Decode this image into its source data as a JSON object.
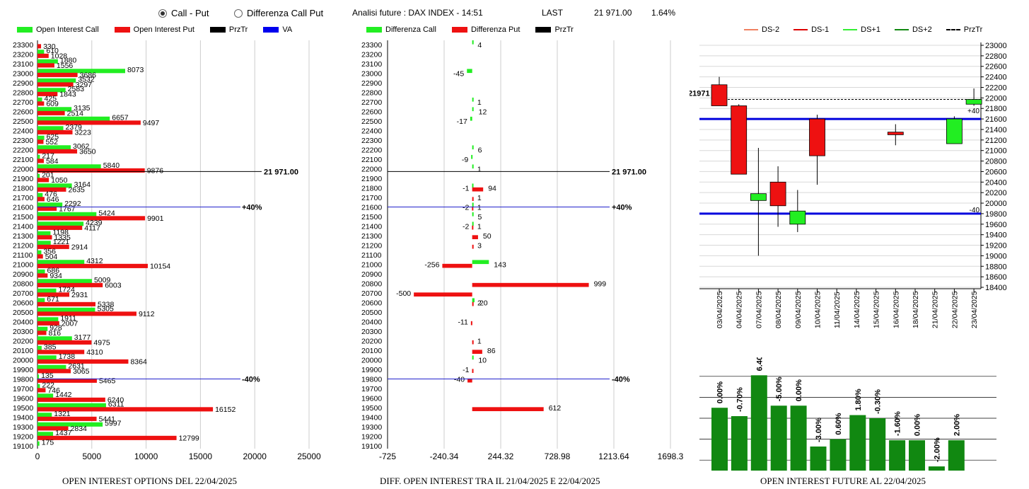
{
  "controls": {
    "radio1": "Call - Put",
    "radio2": "Differenza Call Put",
    "selected": 1
  },
  "header": {
    "title": "Analisi future : DAX INDEX - 14:51",
    "last_label": "LAST",
    "last_value": "21 971.00",
    "change": "1.64%"
  },
  "legends": {
    "oi": [
      {
        "label": "Open Interest Call",
        "color": "#22ee22"
      },
      {
        "label": "Open Interest Put",
        "color": "#ee1111"
      },
      {
        "label": "PrzTr",
        "color": "#000000"
      },
      {
        "label": "VA",
        "color": "#0000ee"
      }
    ],
    "diff": [
      {
        "label": "Differenza Call",
        "color": "#22ee22"
      },
      {
        "label": "Differenza Put",
        "color": "#ee1111"
      },
      {
        "label": "PrzTr",
        "color": "#000000"
      }
    ],
    "candle": [
      {
        "label": "DS-2",
        "color": "#f08060",
        "dash": false
      },
      {
        "label": "DS-1",
        "color": "#dd0000",
        "dash": false
      },
      {
        "label": "DS+1",
        "color": "#33ee33",
        "dash": false
      },
      {
        "label": "DS+2",
        "color": "#118811",
        "dash": false
      },
      {
        "label": "PrzTr",
        "color": "#000000",
        "dash": true
      }
    ]
  },
  "titles": {
    "oi": "OPEN INTEREST OPTIONS DEL 22/04/2025",
    "diff": "DIFF. OPEN INTEREST TRA IL 21/04/2025 E 22/04/2025",
    "future": "OPEN INTEREST FUTURE AL 22/04/2025"
  },
  "chart_data": [
    {
      "type": "bar",
      "name": "open-interest",
      "orientation": "horizontal",
      "strikes": [
        23300,
        23200,
        23100,
        23000,
        22900,
        22800,
        22700,
        22600,
        22500,
        22400,
        22300,
        22200,
        22100,
        22000,
        21900,
        21800,
        21700,
        21600,
        21500,
        21400,
        21300,
        21200,
        21100,
        21000,
        20900,
        20800,
        20700,
        20600,
        20500,
        20400,
        20300,
        20200,
        20100,
        20000,
        19900,
        19800,
        19700,
        19600,
        19500,
        19400,
        19300,
        19200,
        19100
      ],
      "series": [
        {
          "name": "Open Interest Call",
          "values": [
            null,
            610,
            1880,
            8073,
            3532,
            2583,
            425,
            3135,
            6657,
            2379,
            625,
            3062,
            217,
            5840,
            201,
            3164,
            476,
            2292,
            5424,
            4239,
            1198,
            1221,
            356,
            4312,
            686,
            5009,
            1724,
            671,
            5305,
            1911,
            928,
            3177,
            385,
            1738,
            2631,
            135,
            222,
            1442,
            6311,
            1321,
            5997,
            1437,
            175
          ]
        },
        {
          "name": "Open Interest Put",
          "values": [
            330,
            1028,
            1556,
            3686,
            3297,
            1843,
            609,
            2514,
            9497,
            3223,
            552,
            3650,
            584,
            9876,
            1050,
            2635,
            646,
            1767,
            9901,
            4117,
            1335,
            2914,
            504,
            10154,
            934,
            6003,
            2931,
            5338,
            9112,
            2007,
            816,
            4975,
            4310,
            8364,
            3065,
            5465,
            746,
            6240,
            16152,
            5441,
            2834,
            12799,
            null
          ]
        }
      ],
      "xlim": [
        0,
        25000
      ],
      "xticks": [
        0,
        5000,
        10000,
        15000,
        20000,
        25000
      ],
      "annotations": [
        {
          "strike": 21971,
          "label": "21 971.00",
          "kind": "PrzTr"
        },
        {
          "strike": 21600,
          "label": "+40%",
          "kind": "VA"
        },
        {
          "strike": 19800,
          "label": "-40%",
          "kind": "VA"
        }
      ]
    },
    {
      "type": "bar",
      "name": "oi-difference",
      "orientation": "horizontal",
      "strikes": [
        23300,
        23200,
        23100,
        23000,
        22900,
        22800,
        22700,
        22600,
        22500,
        22400,
        22300,
        22200,
        22100,
        22000,
        21900,
        21800,
        21700,
        21600,
        21500,
        21400,
        21300,
        21200,
        21100,
        21000,
        20900,
        20800,
        20700,
        20600,
        20500,
        20400,
        20300,
        20200,
        20100,
        20000,
        19900,
        19800,
        19700,
        19600,
        19500,
        19400,
        19300,
        19200,
        19100
      ],
      "labels": [
        {
          "strike": 23300,
          "value": 4
        },
        {
          "strike": 23000,
          "value": -45
        },
        {
          "strike": 22700,
          "value": 1
        },
        {
          "strike": 22600,
          "value": 12
        },
        {
          "strike": 22500,
          "value": -17
        },
        {
          "strike": 22200,
          "value": 6
        },
        {
          "strike": 22100,
          "value": -9
        },
        {
          "strike": 22000,
          "value": 1
        },
        {
          "strike": 21800,
          "value": -1
        },
        {
          "strike": 21800,
          "value": 94
        },
        {
          "strike": 21700,
          "value": 1
        },
        {
          "strike": 21600,
          "value": 1
        },
        {
          "strike": 21600,
          "value": -2
        },
        {
          "strike": 21500,
          "value": 5
        },
        {
          "strike": 21400,
          "value": 1
        },
        {
          "strike": 21400,
          "value": -2
        },
        {
          "strike": 21300,
          "value": 50
        },
        {
          "strike": 21200,
          "value": 3
        },
        {
          "strike": 21000,
          "value": 143
        },
        {
          "strike": 21000,
          "value": -256
        },
        {
          "strike": 20800,
          "value": 999
        },
        {
          "strike": 20700,
          "value": -500
        },
        {
          "strike": 20600,
          "value": 20
        },
        {
          "strike": 20600,
          "value": 2
        },
        {
          "strike": 20400,
          "value": -11
        },
        {
          "strike": 20200,
          "value": 1
        },
        {
          "strike": 20100,
          "value": 86
        },
        {
          "strike": 20000,
          "value": 10
        },
        {
          "strike": 19900,
          "value": -1
        },
        {
          "strike": 19800,
          "value": -40
        },
        {
          "strike": 19500,
          "value": 612
        }
      ],
      "bars": [
        {
          "strike": 23300,
          "call": 4,
          "put": 0
        },
        {
          "strike": 23000,
          "call": -45,
          "put": 0
        },
        {
          "strike": 22700,
          "call": 1,
          "put": 0
        },
        {
          "strike": 22600,
          "call": 12,
          "put": 0
        },
        {
          "strike": 22500,
          "call": -17,
          "put": 0
        },
        {
          "strike": 22200,
          "call": 6,
          "put": 0
        },
        {
          "strike": 22100,
          "call": -9,
          "put": 0
        },
        {
          "strike": 22000,
          "call": 1,
          "put": 0
        },
        {
          "strike": 21800,
          "call": -1,
          "put": 94
        },
        {
          "strike": 21700,
          "call": 0,
          "put": 1
        },
        {
          "strike": 21600,
          "call": 1,
          "put": -2
        },
        {
          "strike": 21500,
          "call": 5,
          "put": 0
        },
        {
          "strike": 21400,
          "call": 1,
          "put": -2
        },
        {
          "strike": 21300,
          "call": 0,
          "put": 50
        },
        {
          "strike": 21200,
          "call": 0,
          "put": 3
        },
        {
          "strike": 21000,
          "call": 143,
          "put": -256
        },
        {
          "strike": 20800,
          "call": 0,
          "put": 999
        },
        {
          "strike": 20700,
          "call": 0,
          "put": -500
        },
        {
          "strike": 20600,
          "call": 20,
          "put": 2
        },
        {
          "strike": 20400,
          "call": 0,
          "put": -11
        },
        {
          "strike": 20200,
          "call": 0,
          "put": 1
        },
        {
          "strike": 20100,
          "call": 0,
          "put": 86
        },
        {
          "strike": 20000,
          "call": 10,
          "put": 0
        },
        {
          "strike": 19900,
          "call": 0,
          "put": -1
        },
        {
          "strike": 19800,
          "call": 0,
          "put": -40
        },
        {
          "strike": 19500,
          "call": 0,
          "put": 612
        }
      ],
      "xlim": [
        -725,
        1698.3
      ],
      "xticks": [
        "-725",
        "-240.34",
        "244.32",
        "728.98",
        "1213.64",
        "1698.3"
      ],
      "annotations": [
        {
          "strike": 21971,
          "label": "21 971.00"
        },
        {
          "strike": 21600,
          "label": "+40%"
        },
        {
          "strike": 19800,
          "label": "-40%"
        }
      ]
    },
    {
      "type": "candlestick",
      "name": "future-price",
      "dates": [
        "03/04/2025",
        "04/04/2025",
        "07/04/2025",
        "08/04/2025",
        "09/04/2025",
        "10/04/2025",
        "11/04/2025",
        "14/04/2025",
        "15/04/2025",
        "16/04/2025",
        "18/04/2025",
        "21/04/2025",
        "22/04/2025",
        "23/04/2025"
      ],
      "candles": [
        {
          "date": "03/04/2025",
          "open": 22250,
          "high": 22400,
          "low": 21850,
          "close": 21850
        },
        {
          "date": "04/04/2025",
          "open": 21850,
          "high": 21880,
          "low": 20550,
          "close": 20550
        },
        {
          "date": "07/04/2025",
          "open": 20050,
          "high": 21050,
          "low": 19000,
          "close": 20180
        },
        {
          "date": "08/04/2025",
          "open": 20400,
          "high": 20700,
          "low": 19550,
          "close": 19950
        },
        {
          "date": "09/04/2025",
          "open": 19600,
          "high": 20250,
          "low": 19450,
          "close": 19850
        },
        {
          "date": "10/04/2025",
          "open": 21600,
          "high": 21680,
          "low": 20350,
          "close": 20900
        },
        {
          "date": "16/04/2025",
          "open": 21350,
          "high": 21500,
          "low": 21100,
          "close": 21300
        },
        {
          "date": "22/04/2025",
          "open": 21130,
          "high": 21650,
          "low": 21130,
          "close": 21600
        },
        {
          "date": "23/04/2025",
          "open": 21880,
          "high": 22180,
          "low": 21850,
          "close": 21971
        }
      ],
      "ylim": [
        18400,
        23000
      ],
      "yticks": [
        23000,
        22800,
        22600,
        22400,
        22200,
        22000,
        21800,
        21600,
        21400,
        21200,
        21000,
        20800,
        20600,
        20400,
        20200,
        20000,
        19800,
        19600,
        19400,
        19200,
        19000,
        18800,
        18600,
        18400
      ],
      "prztr": 21971,
      "prztr_label": "21971",
      "bands": [
        {
          "value": 21600,
          "label": "+40"
        },
        {
          "value": 19800,
          "label": "-40"
        }
      ]
    },
    {
      "type": "bar",
      "name": "future-oi-change",
      "values": [
        0.0,
        -0.7,
        6.4,
        -5.0,
        0.0,
        -3.0,
        0.6,
        1.8,
        -0.3,
        -1.6,
        0.0,
        -2.0,
        2.0
      ],
      "labels": [
        "0.00%",
        "-0.70%",
        "6.40%",
        "-5.00%",
        "0.00%",
        "-3.00%",
        "0.60%",
        "1.80%",
        "-0.30%",
        "-1.60%",
        "0.00%",
        "-2.00%",
        "2.00%"
      ],
      "heights": [
        0.6,
        0.52,
        0.91,
        0.62,
        0.62,
        0.23,
        0.3,
        0.53,
        0.5,
        0.29,
        0.29,
        0.04,
        0.29
      ]
    }
  ]
}
